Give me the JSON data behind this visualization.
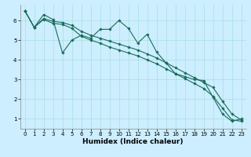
{
  "xlabel": "Humidex (Indice chaleur)",
  "background_color": "#cceeff",
  "line_color": "#1a6b5a",
  "grid_color": "#aadddd",
  "xlim": [
    -0.5,
    23.5
  ],
  "ylim": [
    0.5,
    6.8
  ],
  "xticks": [
    0,
    1,
    2,
    3,
    4,
    5,
    6,
    7,
    8,
    9,
    10,
    11,
    12,
    13,
    14,
    15,
    16,
    17,
    18,
    19,
    20,
    21,
    22,
    23
  ],
  "yticks": [
    1,
    2,
    3,
    4,
    5,
    6
  ],
  "line1_x": [
    0,
    1,
    2,
    3,
    4,
    5,
    6,
    7,
    8,
    9,
    10,
    11,
    12,
    13,
    14,
    15,
    16,
    17,
    18,
    19,
    20,
    21,
    22,
    23
  ],
  "line1_y": [
    6.5,
    5.65,
    6.3,
    6.05,
    4.35,
    5.0,
    5.25,
    5.1,
    5.55,
    5.55,
    6.0,
    5.6,
    4.85,
    5.3,
    4.4,
    3.85,
    3.3,
    3.15,
    3.0,
    2.95,
    2.1,
    1.25,
    0.88,
    1.0
  ],
  "line2_x": [
    0,
    1,
    2,
    3,
    4,
    5,
    6,
    7,
    8,
    9,
    10,
    11,
    12,
    13,
    14,
    15,
    16,
    17,
    18,
    19,
    20,
    21,
    22,
    23
  ],
  "line2_y": [
    6.5,
    5.65,
    6.1,
    5.95,
    5.9,
    5.75,
    5.45,
    5.25,
    5.1,
    4.95,
    4.8,
    4.65,
    4.5,
    4.3,
    4.1,
    3.85,
    3.6,
    3.35,
    3.1,
    2.85,
    2.6,
    1.9,
    1.25,
    0.95
  ],
  "line3_x": [
    0,
    1,
    2,
    3,
    4,
    5,
    6,
    7,
    8,
    9,
    10,
    11,
    12,
    13,
    14,
    15,
    16,
    17,
    18,
    19,
    20,
    21,
    22,
    23
  ],
  "line3_y": [
    6.5,
    5.65,
    6.05,
    5.85,
    5.8,
    5.6,
    5.2,
    5.0,
    4.85,
    4.65,
    4.5,
    4.35,
    4.2,
    4.0,
    3.8,
    3.55,
    3.3,
    3.05,
    2.8,
    2.55,
    2.15,
    1.55,
    0.95,
    0.88
  ],
  "marker": "D",
  "markersize": 1.8,
  "linewidth": 0.8,
  "xlabel_fontsize": 6.5,
  "tick_fontsize": 5.0
}
